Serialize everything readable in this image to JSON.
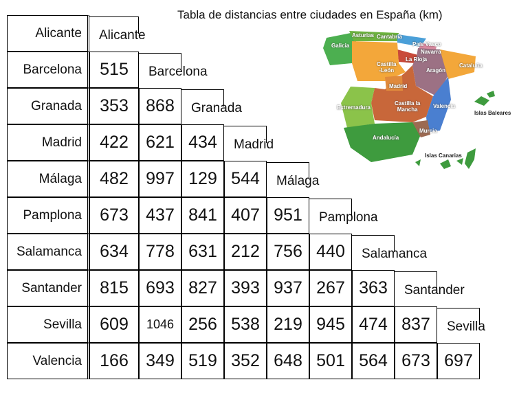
{
  "title": "Tabla de distancias entre ciudades en España (km)",
  "table": {
    "rows": [
      {
        "label": "Alicante",
        "diagonal": "Alicante",
        "distances": []
      },
      {
        "label": "Barcelona",
        "diagonal": "Barcelona",
        "distances": [
          515
        ]
      },
      {
        "label": "Granada",
        "diagonal": "Granada",
        "distances": [
          353,
          868
        ]
      },
      {
        "label": "Madrid",
        "diagonal": "Madrid",
        "distances": [
          422,
          621,
          434
        ]
      },
      {
        "label": "Málaga",
        "diagonal": "Málaga",
        "distances": [
          482,
          997,
          129,
          544
        ]
      },
      {
        "label": "Pamplona",
        "diagonal": "Pamplona",
        "distances": [
          673,
          437,
          841,
          407,
          951
        ]
      },
      {
        "label": "Salamanca",
        "diagonal": "Salamanca",
        "distances": [
          634,
          778,
          631,
          212,
          756,
          440
        ]
      },
      {
        "label": "Santander",
        "diagonal": "Santander",
        "distances": [
          815,
          693,
          827,
          393,
          937,
          267,
          363
        ]
      },
      {
        "label": "Sevilla",
        "diagonal": "Sevilla",
        "distances": [
          609,
          1046,
          256,
          538,
          219,
          945,
          474,
          837
        ]
      },
      {
        "label": "Valencia",
        "distances": [
          166,
          349,
          519,
          352,
          648,
          501,
          564,
          673,
          697
        ]
      }
    ]
  },
  "map": {
    "labels": [
      "Asturias",
      "Cantabria",
      "País Vasco",
      "Galicia",
      "Navarra",
      "La Rioja",
      "Castilla\n-León",
      "Aragón",
      "Cataluña",
      "Madrid",
      "Castilla la\nMancha",
      "Valencia",
      "Extremadura",
      "Islas Baleares",
      "Andalucía",
      "Murcia",
      "Islas Canarias"
    ]
  }
}
